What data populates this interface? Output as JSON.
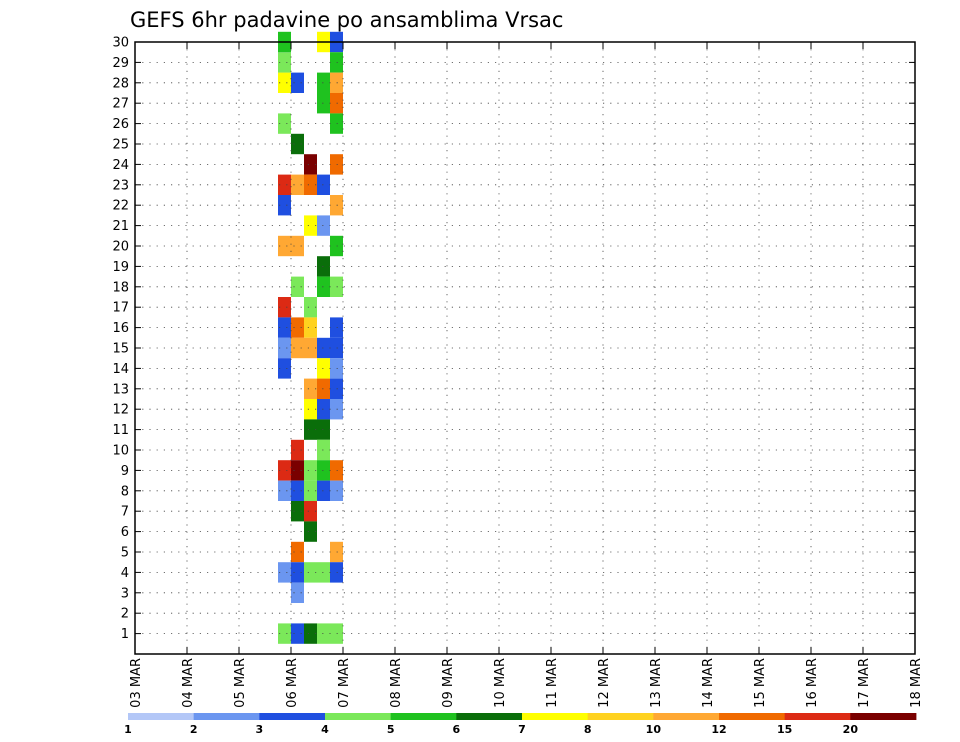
{
  "chart_data": {
    "type": "heatmap",
    "title": "GEFS 6hr padavine po ansamblima Vrsac",
    "x_labels": [
      "03 MAR",
      "04 MAR",
      "05 MAR",
      "06 MAR",
      "07 MAR",
      "08 MAR",
      "09 MAR",
      "10 MAR",
      "11 MAR",
      "12 MAR",
      "13 MAR",
      "14 MAR",
      "15 MAR",
      "16 MAR",
      "17 MAR",
      "18 MAR"
    ],
    "x_range": [
      0,
      60
    ],
    "y_labels": [
      "1",
      "2",
      "3",
      "4",
      "5",
      "6",
      "7",
      "8",
      "9",
      "10",
      "11",
      "12",
      "13",
      "14",
      "15",
      "16",
      "17",
      "18",
      "19",
      "20",
      "21",
      "22",
      "23",
      "24",
      "25",
      "26",
      "27",
      "28",
      "29",
      "30"
    ],
    "y_range": [
      0,
      30
    ],
    "grid": true,
    "legend": {
      "placement": "bottom",
      "labels": [
        "1",
        "2",
        "3",
        "4",
        "5",
        "6",
        "7",
        "8",
        "10",
        "12",
        "15",
        "20"
      ],
      "colors": [
        "#b3c7f7",
        "#6b96f0",
        "#1f4fe0",
        "#7be85a",
        "#1fc21f",
        "#0a6e0a",
        "#ffff00",
        "#ffd21f",
        "#ffa833",
        "#f06a00",
        "#dc2a14",
        "#7a0000"
      ]
    },
    "cells": [
      [
        11,
        29,
        3
      ],
      [
        11,
        30,
        5
      ],
      [
        11,
        29,
        4
      ],
      [
        11,
        28,
        7
      ],
      [
        11,
        26,
        4
      ],
      [
        11,
        23,
        11
      ],
      [
        11,
        22,
        3
      ],
      [
        11,
        20,
        9
      ],
      [
        11,
        17,
        11
      ],
      [
        11,
        16,
        3
      ],
      [
        11,
        15,
        2
      ],
      [
        11,
        14,
        3
      ],
      [
        11,
        9,
        11
      ],
      [
        11,
        8,
        2
      ],
      [
        11,
        4,
        2
      ],
      [
        11,
        1,
        4
      ],
      [
        12,
        28,
        3
      ],
      [
        12,
        25,
        6
      ],
      [
        12,
        23,
        9
      ],
      [
        12,
        20,
        9
      ],
      [
        12,
        18,
        4
      ],
      [
        12,
        16,
        10
      ],
      [
        12,
        15,
        9
      ],
      [
        12,
        10,
        11
      ],
      [
        12,
        9,
        12
      ],
      [
        12,
        8,
        3
      ],
      [
        12,
        7,
        6
      ],
      [
        12,
        5,
        10
      ],
      [
        12,
        4,
        3
      ],
      [
        12,
        3,
        2
      ],
      [
        12,
        1,
        3
      ],
      [
        13,
        24,
        12
      ],
      [
        13,
        23,
        10
      ],
      [
        13,
        21,
        7
      ],
      [
        13,
        17,
        4
      ],
      [
        13,
        16,
        8
      ],
      [
        13,
        15,
        9
      ],
      [
        13,
        13,
        9
      ],
      [
        13,
        12,
        7
      ],
      [
        13,
        11,
        6
      ],
      [
        13,
        9,
        4
      ],
      [
        13,
        8,
        4
      ],
      [
        13,
        7,
        11
      ],
      [
        13,
        6,
        6
      ],
      [
        13,
        4,
        4
      ],
      [
        13,
        1,
        6
      ],
      [
        14,
        30,
        7
      ],
      [
        14,
        28,
        5
      ],
      [
        14,
        27,
        5
      ],
      [
        14,
        23,
        3
      ],
      [
        14,
        21,
        2
      ],
      [
        14,
        19,
        6
      ],
      [
        14,
        18,
        5
      ],
      [
        14,
        15,
        3
      ],
      [
        14,
        14,
        7
      ],
      [
        14,
        13,
        10
      ],
      [
        14,
        12,
        3
      ],
      [
        14,
        11,
        6
      ],
      [
        14,
        10,
        4
      ],
      [
        14,
        9,
        5
      ],
      [
        14,
        8,
        3
      ],
      [
        14,
        4,
        4
      ],
      [
        14,
        1,
        4
      ],
      [
        15,
        30,
        3
      ],
      [
        15,
        29,
        5
      ],
      [
        15,
        28,
        9
      ],
      [
        15,
        27,
        10
      ],
      [
        15,
        26,
        5
      ],
      [
        15,
        24,
        10
      ],
      [
        15,
        22,
        9
      ],
      [
        15,
        20,
        5
      ],
      [
        15,
        18,
        4
      ],
      [
        15,
        16,
        3
      ],
      [
        15,
        15,
        3
      ],
      [
        15,
        14,
        2
      ],
      [
        15,
        13,
        3
      ],
      [
        15,
        12,
        2
      ],
      [
        15,
        9,
        10
      ],
      [
        15,
        8,
        2
      ],
      [
        15,
        5,
        9
      ],
      [
        15,
        4,
        3
      ],
      [
        15,
        1,
        4
      ]
    ]
  }
}
